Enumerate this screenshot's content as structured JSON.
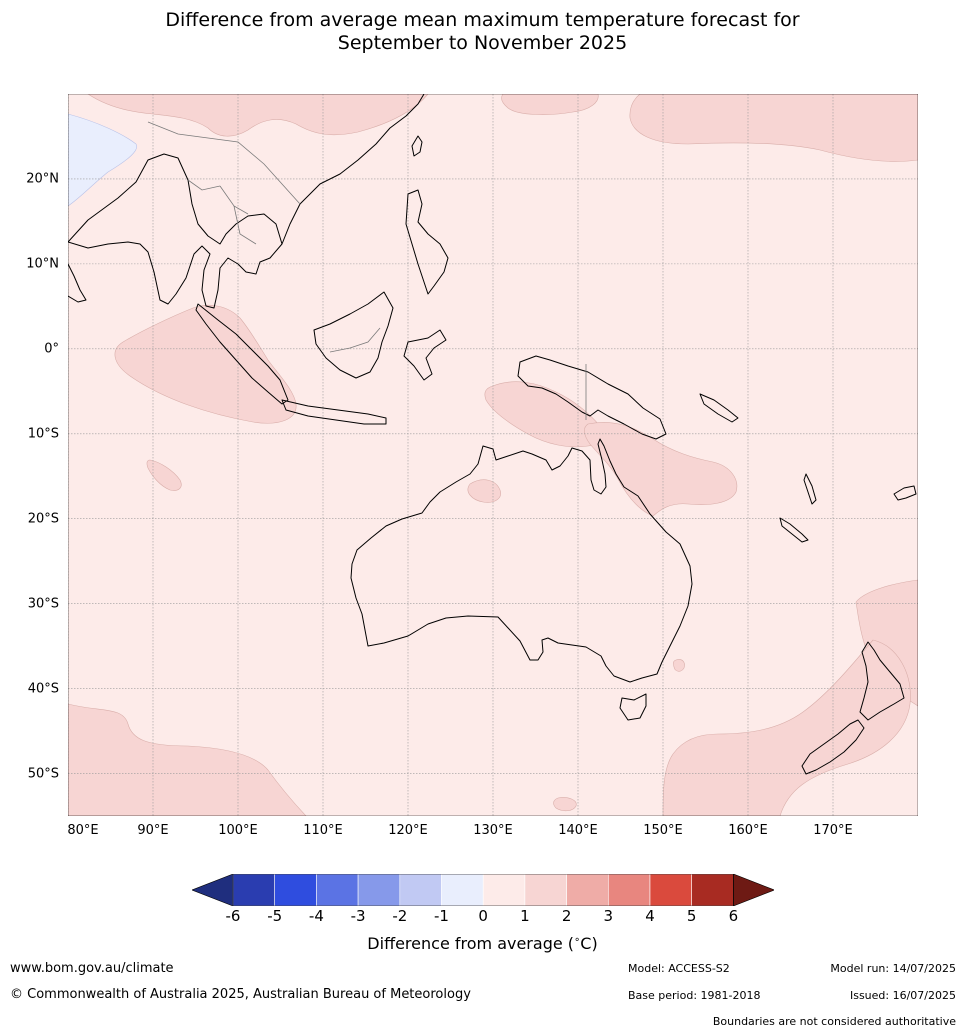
{
  "title": {
    "line1": "Difference from average mean maximum temperature forecast for",
    "line2": "September to November 2025"
  },
  "map": {
    "extent_lon": [
      80,
      180
    ],
    "extent_lat": [
      -55,
      30
    ],
    "background_category": "0 to 1",
    "lat_ticks": [
      {
        "value": 20,
        "label": "20°N"
      },
      {
        "value": 10,
        "label": "10°N"
      },
      {
        "value": 0,
        "label": "0°"
      },
      {
        "value": -10,
        "label": "10°S"
      },
      {
        "value": -20,
        "label": "20°S"
      },
      {
        "value": -30,
        "label": "30°S"
      },
      {
        "value": -40,
        "label": "40°S"
      },
      {
        "value": -50,
        "label": "50°S"
      }
    ],
    "lon_ticks": [
      {
        "value": 80,
        "label": "80°E"
      },
      {
        "value": 90,
        "label": "90°E"
      },
      {
        "value": 100,
        "label": "100°E"
      },
      {
        "value": 110,
        "label": "110°E"
      },
      {
        "value": 120,
        "label": "120°E"
      },
      {
        "value": 130,
        "label": "130°E"
      },
      {
        "value": 140,
        "label": "140°E"
      },
      {
        "value": 150,
        "label": "150°E"
      },
      {
        "value": 160,
        "label": "160°E"
      },
      {
        "value": 170,
        "label": "170°E"
      }
    ]
  },
  "colorbar": {
    "ticks": [
      "-6",
      "-5",
      "-4",
      "-3",
      "-2",
      "-1",
      "0",
      "1",
      "2",
      "3",
      "4",
      "5",
      "6"
    ],
    "colors": [
      "#1f2e7e",
      "#2a3db0",
      "#2f4ddf",
      "#5b73e4",
      "#8699ea",
      "#c1c9f3",
      "#e9eefd",
      "#fdebe9",
      "#f7d5d3",
      "#efaca7",
      "#e8867f",
      "#da4a3d",
      "#a82b22",
      "#6e1a14"
    ],
    "label": "Difference from average ($^\\circ$C)",
    "label_text": "Difference from average (",
    "label_unit": "C)",
    "label_degree": "∘"
  },
  "footer": {
    "website": "www.bom.gov.au/climate",
    "copyright": "© Commonwealth of Australia 2025, Australian Bureau of Meteorology",
    "model": "Model: ACCESS-S2",
    "model_run": "Model run: 14/07/2025",
    "base_period": "Base period: 1981-2018",
    "issued": "Issued: 16/07/2025",
    "disclaimer": "Boundaries are not considered authoritative"
  }
}
